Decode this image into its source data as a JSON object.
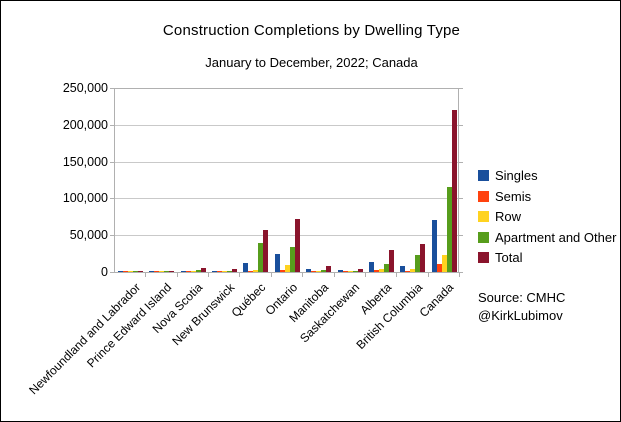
{
  "title": "Construction Completions by Dwelling Type",
  "subtitle": "January to December, 2022; Canada",
  "source": {
    "line1": "Source: CMHC",
    "line2": "@KirkLubimov"
  },
  "chart_data": {
    "type": "bar",
    "title": "Construction Completions by Dwelling Type",
    "subtitle": "January to December, 2022; Canada",
    "categories": [
      "Newfoundland and Labrador",
      "Prince Edward Island",
      "Nova Scotia",
      "New Brunswick",
      "Québec",
      "Ontario",
      "Manitoba",
      "Saskatchewan",
      "Alberta",
      "British Columbia",
      "Canada"
    ],
    "series": [
      {
        "name": "Singles",
        "color": "#194f9c",
        "values": [
          1200,
          500,
          1900,
          1400,
          12000,
          24500,
          4200,
          2400,
          13000,
          8800,
          70000
        ]
      },
      {
        "name": "Semis",
        "color": "#ff420e",
        "values": [
          150,
          150,
          250,
          250,
          2000,
          3000,
          350,
          300,
          2600,
          1900,
          11500
        ]
      },
      {
        "name": "Row",
        "color": "#ffd320",
        "values": [
          150,
          250,
          350,
          250,
          2600,
          9500,
          900,
          700,
          4200,
          4100,
          22500
        ]
      },
      {
        "name": "Apartment and Other",
        "color": "#579d1c",
        "values": [
          400,
          700,
          2300,
          1800,
          39500,
          33500,
          2500,
          1200,
          11000,
          22500,
          116000
        ]
      },
      {
        "name": "Total",
        "color": "#8a142c",
        "values": [
          1900,
          1600,
          4800,
          3700,
          57500,
          72000,
          7900,
          4600,
          30000,
          38500,
          220000
        ]
      }
    ],
    "ylim": [
      0,
      250000
    ],
    "ytick_interval": 50000,
    "ytick_labels": [
      "0",
      "50,000",
      "100,000",
      "150,000",
      "200,000",
      "250,000"
    ],
    "xlabel": "",
    "ylabel": "",
    "grid": true,
    "x_label_rotation_deg": -45,
    "legend_position": "right"
  }
}
